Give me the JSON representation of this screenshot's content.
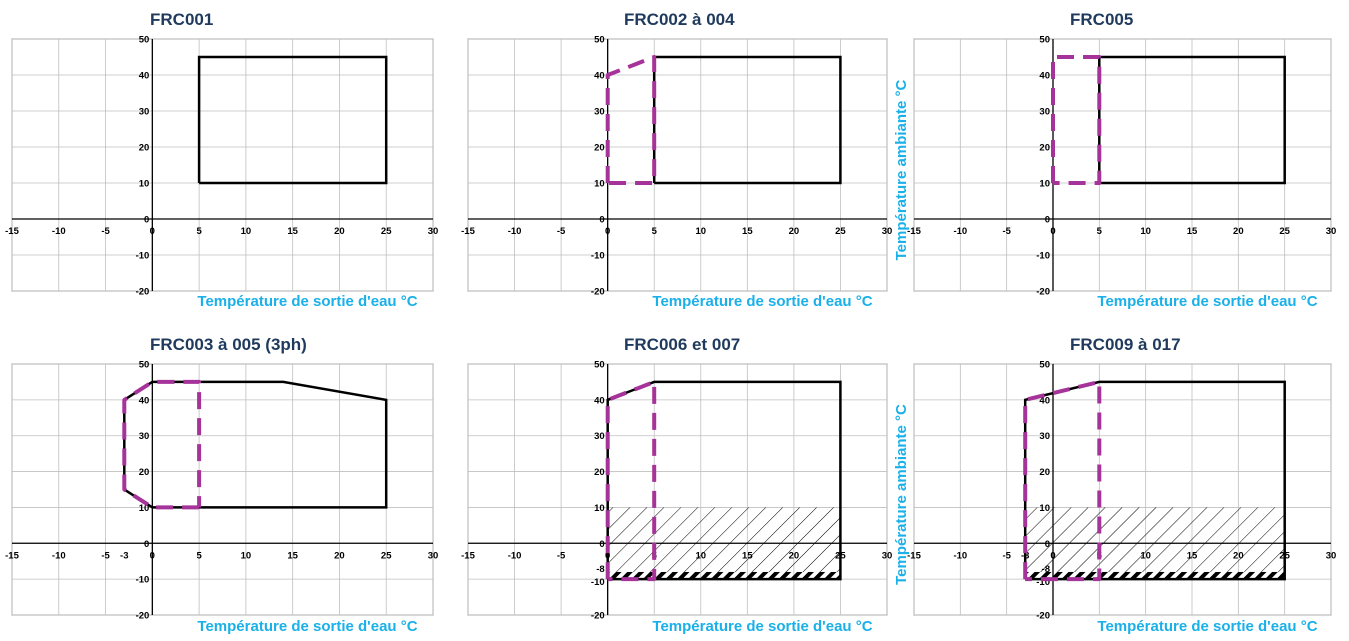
{
  "colors": {
    "envelope": "#000000",
    "dashed": "#a63399",
    "label": "#1ab0e8",
    "title": "#1f3a5c",
    "grid": "#bfbfbf",
    "border": "#7f7f7f"
  },
  "chart_data": [
    {
      "type": "line",
      "title": "FRC001",
      "xlabel": "Température de sortie d'eau °C",
      "ylabel": "",
      "xlim": [
        -15,
        30
      ],
      "ylim": [
        -20,
        50
      ],
      "xticks": [
        -15,
        -10,
        -5,
        0,
        5,
        10,
        15,
        20,
        25,
        30
      ],
      "yticks": [
        -20,
        -10,
        0,
        10,
        20,
        30,
        40,
        50
      ],
      "series": [
        {
          "style": "solid",
          "points": [
            [
              5,
              10
            ],
            [
              5,
              45
            ],
            [
              25,
              45
            ],
            [
              25,
              10
            ],
            [
              5,
              10
            ]
          ]
        }
      ]
    },
    {
      "type": "line",
      "title": "FRC002 à 004",
      "xlabel": "Température de sortie d'eau °C",
      "ylabel": "Température ambiante °C",
      "xlim": [
        -15,
        30
      ],
      "ylim": [
        -20,
        50
      ],
      "xticks": [
        -15,
        -10,
        -5,
        0,
        5,
        10,
        15,
        20,
        25,
        30
      ],
      "yticks": [
        -20,
        -10,
        0,
        10,
        20,
        30,
        40,
        50
      ],
      "series": [
        {
          "style": "solid",
          "points": [
            [
              5,
              10
            ],
            [
              5,
              45
            ],
            [
              25,
              45
            ],
            [
              25,
              10
            ],
            [
              5,
              10
            ]
          ]
        },
        {
          "style": "dashed",
          "points": [
            [
              0,
              10
            ],
            [
              0,
              40
            ],
            [
              5,
              45
            ],
            [
              5,
              10
            ],
            [
              0,
              10
            ]
          ]
        }
      ]
    },
    {
      "type": "line",
      "title": "FRC005",
      "xlabel": "Température de sortie d'eau °C",
      "ylabel": "Température ambiante °C",
      "xlim": [
        -15,
        30
      ],
      "ylim": [
        -20,
        50
      ],
      "xticks": [
        -15,
        -10,
        -5,
        0,
        5,
        10,
        15,
        20,
        25,
        30
      ],
      "yticks": [
        -20,
        -10,
        0,
        10,
        20,
        30,
        40,
        50
      ],
      "series": [
        {
          "style": "solid",
          "points": [
            [
              5,
              10
            ],
            [
              5,
              45
            ],
            [
              25,
              45
            ],
            [
              25,
              10
            ],
            [
              5,
              10
            ]
          ]
        },
        {
          "style": "dashed",
          "points": [
            [
              0,
              10
            ],
            [
              0,
              45
            ],
            [
              5,
              45
            ],
            [
              5,
              10
            ],
            [
              0,
              10
            ]
          ]
        }
      ]
    },
    {
      "type": "line",
      "title": "FRC003 à 005 (3ph)",
      "xlabel": "Température de sortie d'eau °C",
      "ylabel": "",
      "xlim": [
        -15,
        30
      ],
      "ylim": [
        -20,
        50
      ],
      "xticks": [
        -15,
        -10,
        -5,
        -3,
        0,
        5,
        10,
        15,
        20,
        25,
        30
      ],
      "yticks": [
        -20,
        -10,
        0,
        10,
        20,
        30,
        40,
        50
      ],
      "series": [
        {
          "style": "solid",
          "points": [
            [
              -3,
              15
            ],
            [
              -3,
              40
            ],
            [
              0,
              45
            ],
            [
              14,
              45
            ],
            [
              25,
              40
            ],
            [
              25,
              10
            ],
            [
              0,
              10
            ],
            [
              -3,
              15
            ]
          ]
        },
        {
          "style": "dashed",
          "points": [
            [
              5,
              10
            ],
            [
              0,
              10
            ],
            [
              -3,
              15
            ],
            [
              -3,
              40
            ],
            [
              0,
              45
            ],
            [
              5,
              45
            ],
            [
              5,
              10
            ]
          ]
        }
      ]
    },
    {
      "type": "line",
      "title": "FRC006 et 007",
      "xlabel": "Température de sortie d'eau °C",
      "ylabel": "Température ambiante °C",
      "xlim": [
        -15,
        30
      ],
      "ylim": [
        -20,
        50
      ],
      "xticks": [
        -15,
        -10,
        -5,
        0,
        5,
        10,
        15,
        20,
        25,
        30
      ],
      "yticks": [
        -20,
        -10,
        -8,
        0,
        10,
        20,
        30,
        40,
        50
      ],
      "hatch": {
        "x": [
          0,
          25
        ],
        "y": [
          -8,
          10
        ],
        "band": [
          -10,
          -8
        ]
      },
      "series": [
        {
          "style": "solid",
          "points": [
            [
              0,
              -10
            ],
            [
              0,
              40
            ],
            [
              5,
              45
            ],
            [
              25,
              45
            ],
            [
              25,
              -10
            ],
            [
              0,
              -10
            ]
          ]
        },
        {
          "style": "dashed",
          "points": [
            [
              0,
              -10
            ],
            [
              0,
              40
            ],
            [
              5,
              45
            ],
            [
              5,
              -10
            ],
            [
              0,
              -10
            ]
          ]
        }
      ]
    },
    {
      "type": "line",
      "title": "FRC009 à 017",
      "xlabel": "Température de sortie d'eau °C",
      "ylabel": "Température ambiante °C",
      "xlim": [
        -15,
        30
      ],
      "ylim": [
        -20,
        50
      ],
      "xticks": [
        -15,
        -10,
        -5,
        -3,
        0,
        5,
        10,
        15,
        20,
        25,
        30
      ],
      "yticks": [
        -20,
        -10,
        -8,
        0,
        10,
        20,
        30,
        40,
        50
      ],
      "hatch": {
        "x": [
          -3,
          25
        ],
        "y": [
          -8,
          10
        ],
        "band": [
          -10,
          -8
        ]
      },
      "series": [
        {
          "style": "solid",
          "points": [
            [
              -3,
              -10
            ],
            [
              -3,
              40
            ],
            [
              5,
              45
            ],
            [
              25,
              45
            ],
            [
              25,
              -10
            ],
            [
              -3,
              -10
            ]
          ]
        },
        {
          "style": "dashed",
          "points": [
            [
              -3,
              -10
            ],
            [
              -3,
              40
            ],
            [
              5,
              45
            ],
            [
              5,
              -10
            ],
            [
              -3,
              -10
            ]
          ]
        }
      ]
    }
  ]
}
